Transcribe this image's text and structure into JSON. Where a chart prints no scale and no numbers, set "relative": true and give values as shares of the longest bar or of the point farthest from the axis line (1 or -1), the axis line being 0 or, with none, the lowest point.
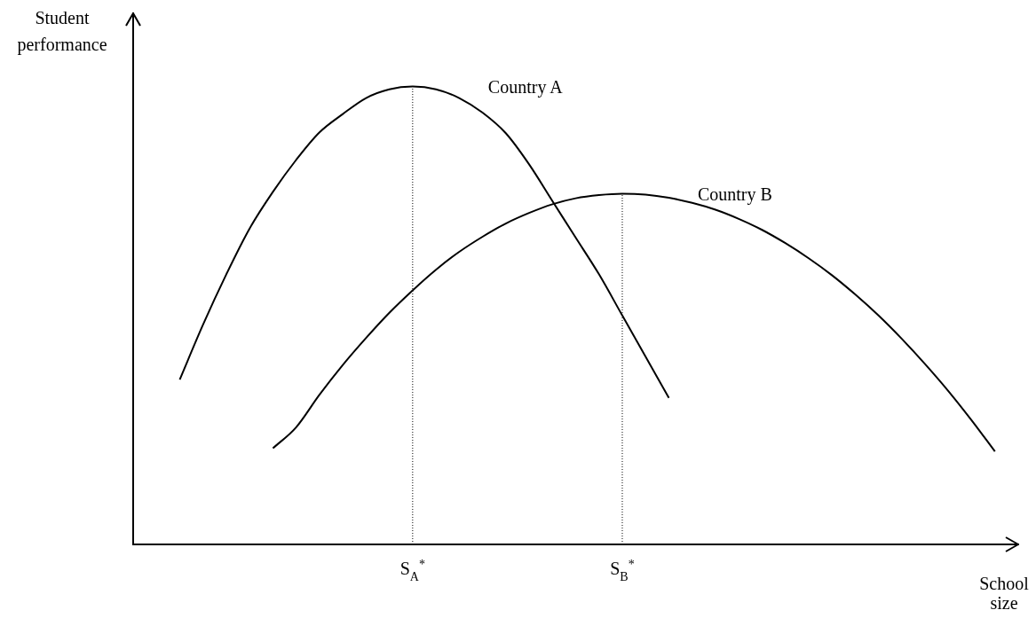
{
  "chart_data": {
    "type": "line",
    "relative": true,
    "xlabel": "School size",
    "ylabel": "Student performance",
    "categories": [
      null,
      null,
      null,
      null,
      null,
      null,
      null,
      null,
      null,
      null,
      null,
      null,
      "S$_{A}$$^{*}$",
      null,
      null,
      null,
      null,
      null,
      null,
      null,
      null,
      "S$_{B}$$^{*}$",
      null,
      null,
      null,
      null,
      null,
      null,
      null,
      null,
      null,
      null,
      null,
      null,
      null,
      null,
      null,
      null,
      null
    ],
    "series": [
      {
        "name": "Country A",
        "color": "#000000",
        "values": [
          null,
          null,
          0.36,
          0.48,
          0.59,
          0.69,
          0.77,
          0.84,
          0.9,
          0.94,
          0.975,
          0.994,
          1,
          0.994,
          0.975,
          0.943,
          0.898,
          0.83,
          0.75,
          0.67,
          0.59,
          0.5,
          0.41,
          0.32,
          null,
          null,
          null,
          null,
          null,
          null,
          null,
          null,
          null,
          null,
          null,
          null,
          null,
          null,
          null
        ]
      },
      {
        "name": "Country B",
        "color": "#000000",
        "values": [
          null,
          null,
          null,
          null,
          null,
          null,
          0.21,
          0.256,
          0.327,
          0.392,
          0.451,
          0.506,
          0.555,
          0.6,
          0.639,
          0.672,
          0.701,
          0.724,
          0.743,
          0.756,
          0.763,
          0.766,
          0.764,
          0.757,
          0.746,
          0.731,
          0.711,
          0.687,
          0.658,
          0.625,
          0.588,
          0.546,
          0.5,
          0.449,
          0.394,
          0.335,
          0.271,
          0.203,
          null
        ]
      }
    ],
    "ref_lines": [
      {
        "axis": "x",
        "value": "S$_{A}$$^{*}$",
        "line_style": "dotted"
      },
      {
        "axis": "x",
        "value": "S$_{B}$$^{*}$",
        "line_style": "dotted"
      }
    ],
    "grid": false,
    "legend": false,
    "marker": "none",
    "line_style": "solid"
  }
}
